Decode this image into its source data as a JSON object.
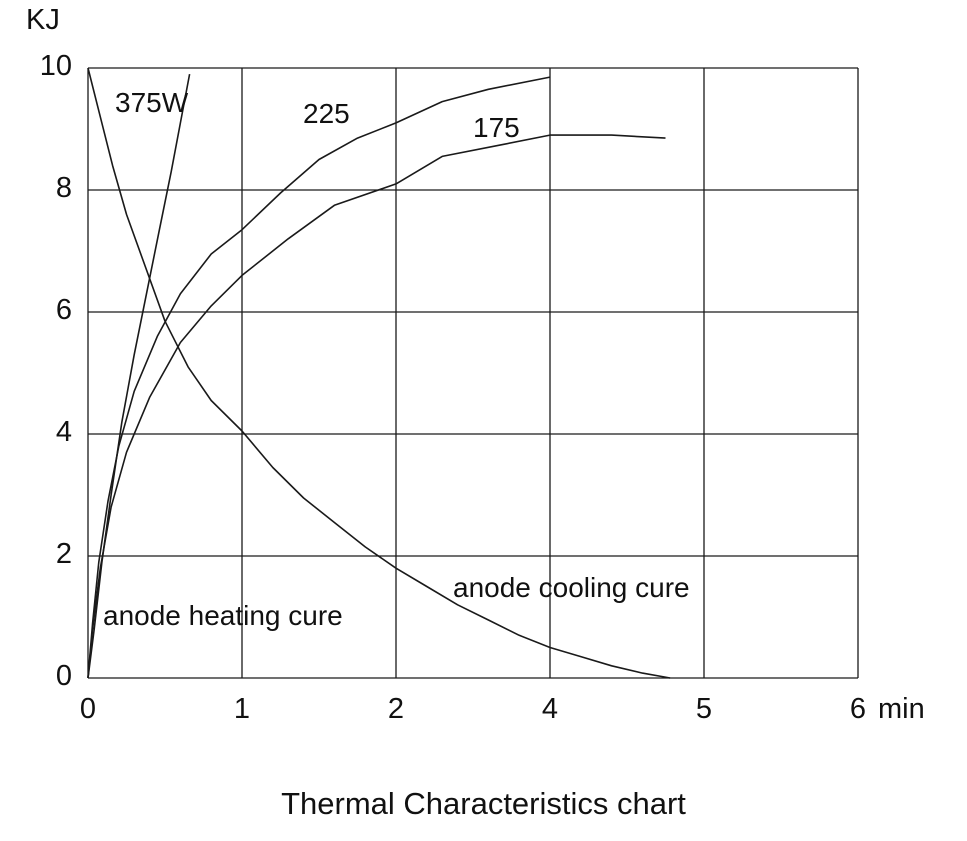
{
  "page": {
    "title": "Thermal Characteristics chart"
  },
  "chart_data": {
    "type": "line",
    "title": "Thermal Characteristics chart",
    "xlabel": "min",
    "ylabel": "KJ",
    "x_tick_labels": [
      "0",
      "1",
      "2",
      "4",
      "5",
      "6"
    ],
    "x_grid_positions": [
      0,
      1,
      2,
      3,
      4,
      5
    ],
    "y_ticks": [
      0,
      2,
      4,
      6,
      8,
      10
    ],
    "ylim": [
      0,
      10
    ],
    "grid": true,
    "legend_position": "none",
    "line_color": "#1a1a1a",
    "series": [
      {
        "name": "anode-heating-375W",
        "label": "375W",
        "points": [
          [
            0,
            0
          ],
          [
            0.04,
            0.8
          ],
          [
            0.09,
            1.9
          ],
          [
            0.15,
            3.0
          ],
          [
            0.22,
            4.2
          ],
          [
            0.3,
            5.3
          ],
          [
            0.38,
            6.3
          ],
          [
            0.46,
            7.3
          ],
          [
            0.54,
            8.3
          ],
          [
            0.6,
            9.1
          ],
          [
            0.66,
            9.9
          ]
        ]
      },
      {
        "name": "anode-heating-225W",
        "label": "225",
        "points": [
          [
            0,
            0
          ],
          [
            0.03,
            0.9
          ],
          [
            0.07,
            1.9
          ],
          [
            0.13,
            2.9
          ],
          [
            0.2,
            3.8
          ],
          [
            0.3,
            4.7
          ],
          [
            0.45,
            5.6
          ],
          [
            0.6,
            6.3
          ],
          [
            0.8,
            6.95
          ],
          [
            1.0,
            7.35
          ],
          [
            1.25,
            7.95
          ],
          [
            1.5,
            8.5
          ],
          [
            1.75,
            8.85
          ],
          [
            2.0,
            9.1
          ],
          [
            2.3,
            9.45
          ],
          [
            2.6,
            9.65
          ],
          [
            3.0,
            9.85
          ]
        ]
      },
      {
        "name": "anode-heating-175W",
        "label": "175",
        "points": [
          [
            0,
            0
          ],
          [
            0.03,
            0.8
          ],
          [
            0.08,
            1.8
          ],
          [
            0.15,
            2.8
          ],
          [
            0.25,
            3.7
          ],
          [
            0.4,
            4.6
          ],
          [
            0.6,
            5.5
          ],
          [
            0.8,
            6.1
          ],
          [
            1.0,
            6.6
          ],
          [
            1.3,
            7.2
          ],
          [
            1.6,
            7.75
          ],
          [
            2.0,
            8.1
          ],
          [
            2.3,
            8.55
          ],
          [
            2.7,
            8.75
          ],
          [
            3.0,
            8.9
          ],
          [
            3.4,
            8.9
          ],
          [
            3.75,
            8.85
          ]
        ]
      },
      {
        "name": "anode-cooling",
        "label": "anode cooling cure",
        "points": [
          [
            0,
            10
          ],
          [
            0.08,
            9.2
          ],
          [
            0.16,
            8.4
          ],
          [
            0.25,
            7.6
          ],
          [
            0.35,
            6.9
          ],
          [
            0.5,
            5.85
          ],
          [
            0.65,
            5.1
          ],
          [
            0.8,
            4.55
          ],
          [
            1.0,
            4.05
          ],
          [
            1.2,
            3.45
          ],
          [
            1.4,
            2.95
          ],
          [
            1.6,
            2.55
          ],
          [
            1.8,
            2.15
          ],
          [
            2.0,
            1.8
          ],
          [
            2.2,
            1.5
          ],
          [
            2.4,
            1.2
          ],
          [
            2.6,
            0.95
          ],
          [
            2.8,
            0.7
          ],
          [
            3.0,
            0.5
          ],
          [
            3.2,
            0.35
          ],
          [
            3.4,
            0.2
          ],
          [
            3.6,
            0.08
          ],
          [
            3.78,
            0
          ]
        ]
      }
    ],
    "annotations": [
      {
        "text": "anode heating cure"
      },
      {
        "text": "anode cooling cure"
      }
    ]
  }
}
